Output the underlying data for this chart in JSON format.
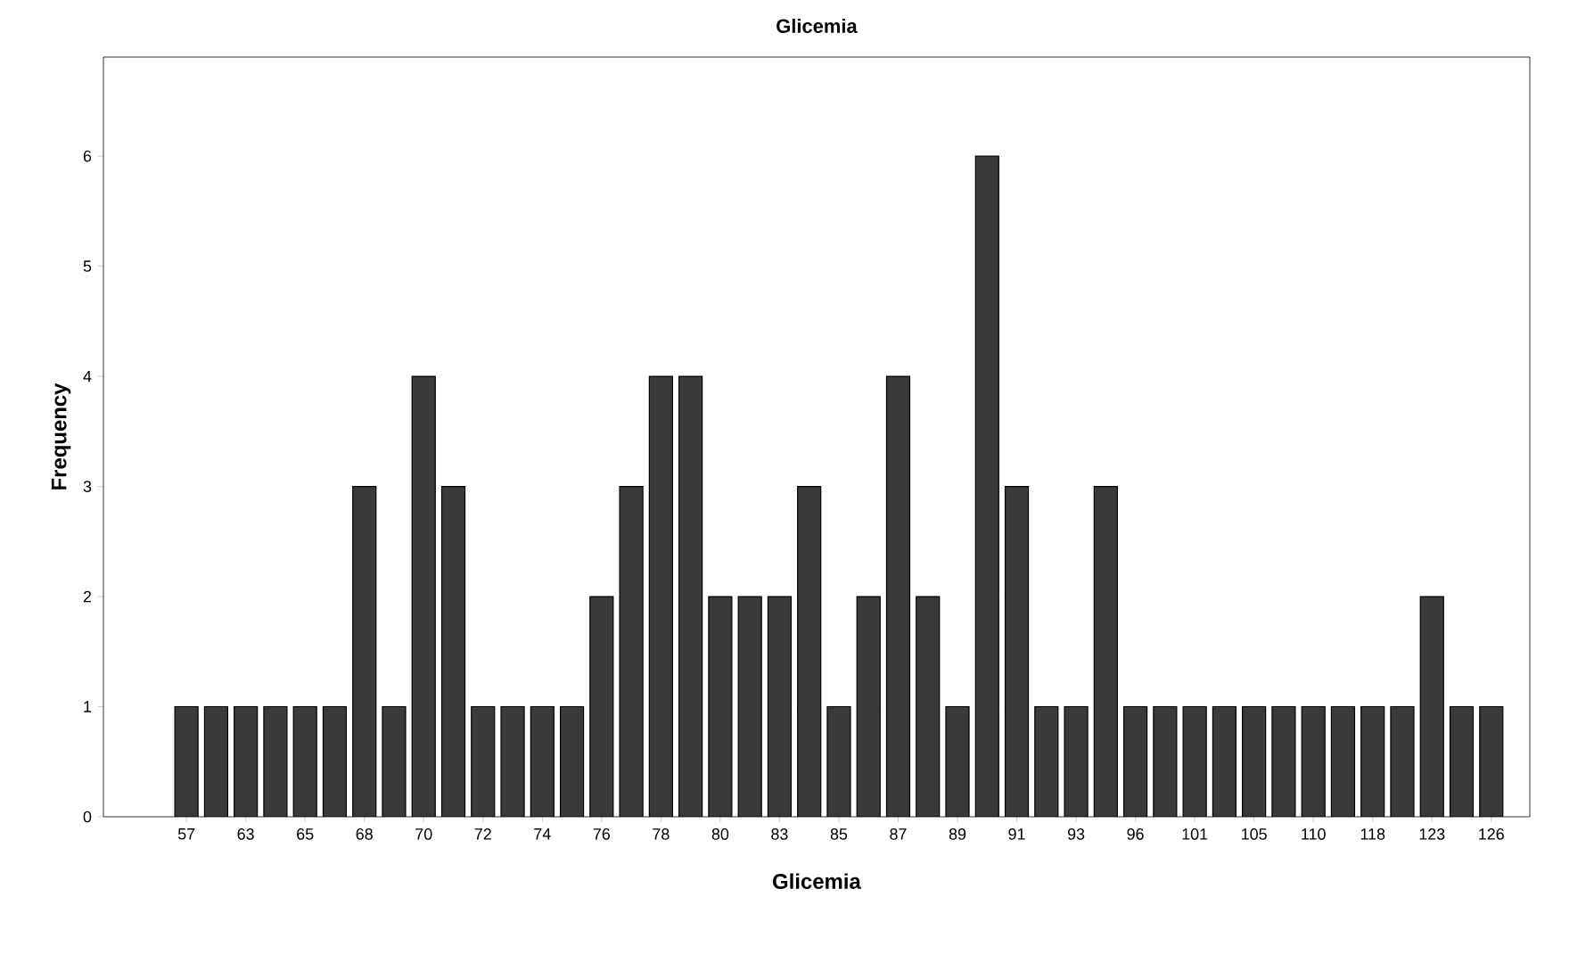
{
  "chart_data": {
    "type": "bar",
    "title": "**Glicemia**",
    "xlabel": "**Glicemia**",
    "ylabel": "**Frequency**",
    "categories": [
      "57",
      null,
      "63",
      null,
      "65",
      null,
      "68",
      null,
      "70",
      null,
      "72",
      null,
      "74",
      null,
      "76",
      null,
      "78",
      null,
      "80",
      null,
      "83",
      null,
      "85",
      null,
      "87",
      null,
      "89",
      null,
      "91",
      null,
      "93",
      null,
      "96",
      null,
      "101",
      null,
      "105",
      null,
      "110",
      null,
      "118",
      null,
      "123",
      null,
      "126"
    ],
    "values": [
      1,
      1,
      1,
      1,
      1,
      1,
      3,
      1,
      4,
      3,
      1,
      1,
      1,
      1,
      2,
      3,
      4,
      4,
      2,
      2,
      2,
      3,
      1,
      2,
      4,
      2,
      1,
      6,
      3,
      1,
      1,
      3,
      1,
      1,
      1,
      1,
      1,
      1,
      1,
      1,
      1,
      1,
      2,
      1,
      1
    ],
    "color": "#3a3a3a",
    "ylim": [
      0,
      6.9
    ],
    "yticks": [
      0,
      1,
      2,
      3,
      4,
      5,
      6
    ],
    "grid": false
  }
}
